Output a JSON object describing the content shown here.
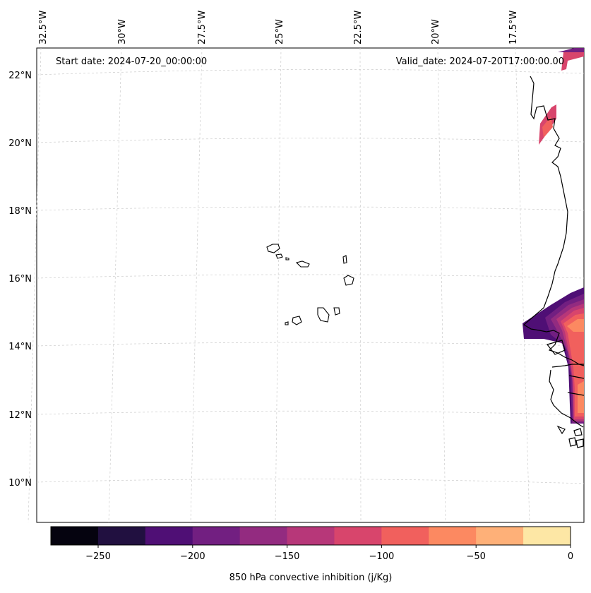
{
  "map": {
    "start_date": "Start date: 2024-07-20_00:00:00",
    "valid_date": "Valid_date: 2024-07-20T17:00:00.00",
    "lat_labels": [
      "22°N",
      "20°N",
      "18°N",
      "16°N",
      "14°N",
      "12°N",
      "10°N"
    ],
    "lon_labels": [
      "32.5°W",
      "30°W",
      "27.5°W",
      "25°W",
      "22.5°W",
      "20°W",
      "17.5°W"
    ],
    "gridlines": true
  },
  "colorbar": {
    "label": "850 hPa convective inhibition (j/Kg)",
    "ticks": [
      "−250",
      "−200",
      "−150",
      "−100",
      "−50",
      "0"
    ],
    "range": [
      -275,
      0
    ],
    "colors": [
      "#05030f",
      "#211040",
      "#4f0f75",
      "#721f81",
      "#932b80",
      "#b73779",
      "#d8456c",
      "#f1605d",
      "#fc8961",
      "#feb078",
      "#fde7a5"
    ]
  }
}
